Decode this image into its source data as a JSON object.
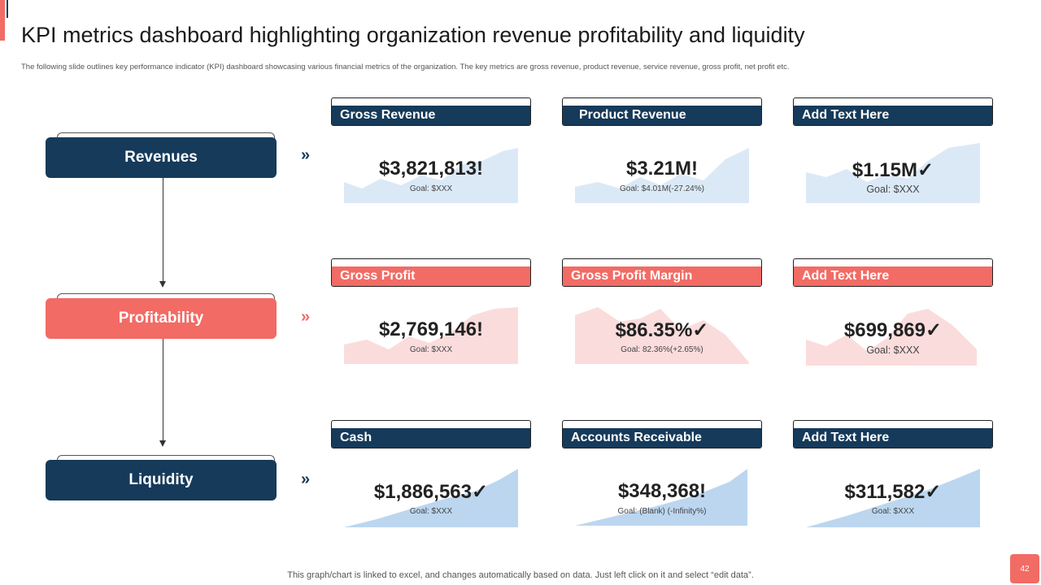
{
  "title": "KPI metrics dashboard highlighting organization revenue profitability and liquidity",
  "subtitle": "The following slide outlines key performance indicator (KPI) dashboard showcasing various financial metrics of the organization. The key metrics are gross revenue, product revenue, service revenue, gross profit, net profit etc.",
  "sections": [
    {
      "label": "Revenues",
      "chevron": "»"
    },
    {
      "label": "Profitability",
      "chevron": "»"
    },
    {
      "label": "Liquidity",
      "chevron": "»"
    }
  ],
  "cards": [
    {
      "header": "Gross Revenue",
      "value": "$3,821,813!",
      "goal": "Goal: $XXX"
    },
    {
      "header": "Product Revenue",
      "value": "$3.21M!",
      "goal": "Goal: $4.01M(-27.24%)"
    },
    {
      "header": "Add Text Here",
      "value": "$1.15M✓",
      "goal": "Goal: $XXX"
    },
    {
      "header": "Gross Profit",
      "value": "$2,769,146!",
      "goal": "Goal: $XXX"
    },
    {
      "header": "Gross Profit Margin",
      "value": "$86.35%✓",
      "goal": "Goal: 82.36%(+2.65%)"
    },
    {
      "header": "Add Text Here",
      "value": "$699,869✓",
      "goal": "Goal: $XXX"
    },
    {
      "header": "Cash",
      "value": "$1,886,563✓",
      "goal": "Goal: $XXX"
    },
    {
      "header": "Accounts Receivable",
      "value": "$348,368!",
      "goal": "Goal: (Blank) (-Infinity%)"
    },
    {
      "header": "Add Text Here",
      "value": "$311,582✓",
      "goal": "Goal: $XXX"
    }
  ],
  "footer_note": "This graph/chart is linked to excel, and changes automatically based on data. Just left click on it and select “edit data”.",
  "page_number": "42",
  "colors": {
    "navy": "#163a5a",
    "coral": "#f26b65",
    "spark_light_blue": "#dbe9f7",
    "spark_blue": "#bcd6ef",
    "spark_pink": "#fbdcdc"
  }
}
